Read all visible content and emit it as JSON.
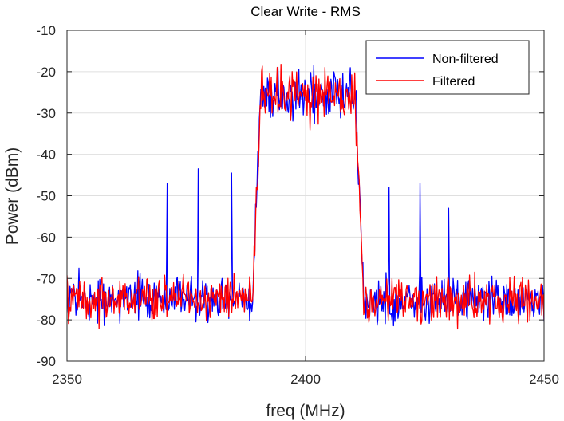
{
  "chart_data": {
    "type": "line",
    "title": "Clear Write - RMS",
    "xlabel": "freq (MHz)",
    "ylabel": "Power (dBm)",
    "xlim": [
      2350,
      2450
    ],
    "ylim": [
      -90,
      -10
    ],
    "xticks": [
      2350,
      2400,
      2450
    ],
    "yticks": [
      -90,
      -80,
      -70,
      -60,
      -50,
      -40,
      -30,
      -20,
      -10
    ],
    "grid": true,
    "legend_position": "top-right",
    "series": [
      {
        "name": "Non-filtered",
        "color": "#0000ff",
        "noise_floor_dBm": -75,
        "inband_level_dBm": -26,
        "channel_edges_MHz": [
          2390,
          2411
        ],
        "spurs": [
          {
            "x": 2371,
            "y": -47
          },
          {
            "x": 2377.5,
            "y": -43.5
          },
          {
            "x": 2384.5,
            "y": -44.5
          },
          {
            "x": 2417.5,
            "y": -48
          },
          {
            "x": 2424,
            "y": -47
          },
          {
            "x": 2430,
            "y": -53
          }
        ]
      },
      {
        "name": "Filtered",
        "color": "#ff0000",
        "noise_floor_dBm": -75,
        "inband_level_dBm": -25,
        "channel_edges_MHz": [
          2390,
          2411
        ],
        "spurs": []
      }
    ]
  }
}
